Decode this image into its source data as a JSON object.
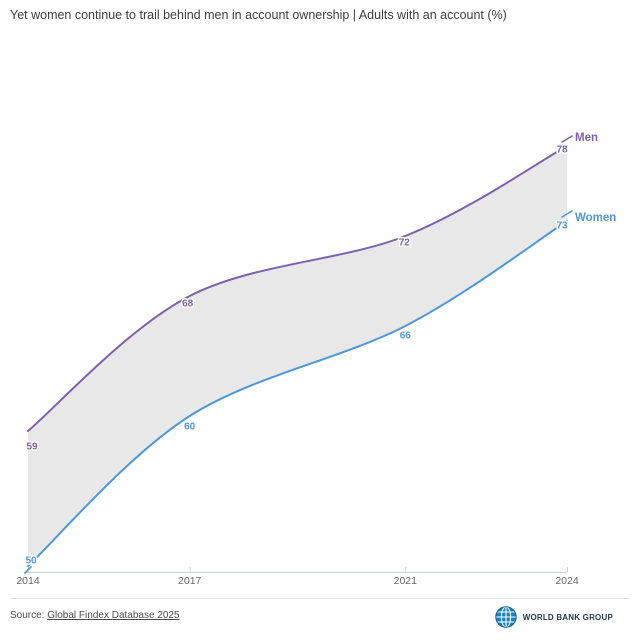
{
  "header": {
    "title": "Yet women continue to trail behind men in account ownership | Adults with an account (%)"
  },
  "chart_data": {
    "type": "line",
    "title": "Yet women continue to trail behind men in account ownership | Adults with an account (%)",
    "x": [
      2014,
      2017,
      2021,
      2024
    ],
    "xticks": [
      "2014",
      "2017",
      "2021",
      "2024"
    ],
    "series": [
      {
        "name": "Men",
        "values": [
          59,
          68,
          72,
          78
        ],
        "color": "#7c62ab"
      },
      {
        "name": "Women",
        "values": [
          50,
          60,
          66,
          73
        ],
        "color": "#4e97d8"
      }
    ],
    "ylim": [
      50,
      78
    ],
    "xlabel": "",
    "ylabel": "Adults with an account (%)",
    "grid": false,
    "value_labels_shown": true,
    "legend_position": "line-end-labels",
    "area_between_color": "#e8e8e8",
    "axis_color": "#c9d2dc",
    "tick_label_color": "#666666"
  },
  "footer": {
    "source_prefix": "Source:",
    "source_link_text": "Global Findex Database 2025",
    "logo_text": "WORLD BANK GROUP",
    "logo_globe_color": "#1a84c2"
  }
}
